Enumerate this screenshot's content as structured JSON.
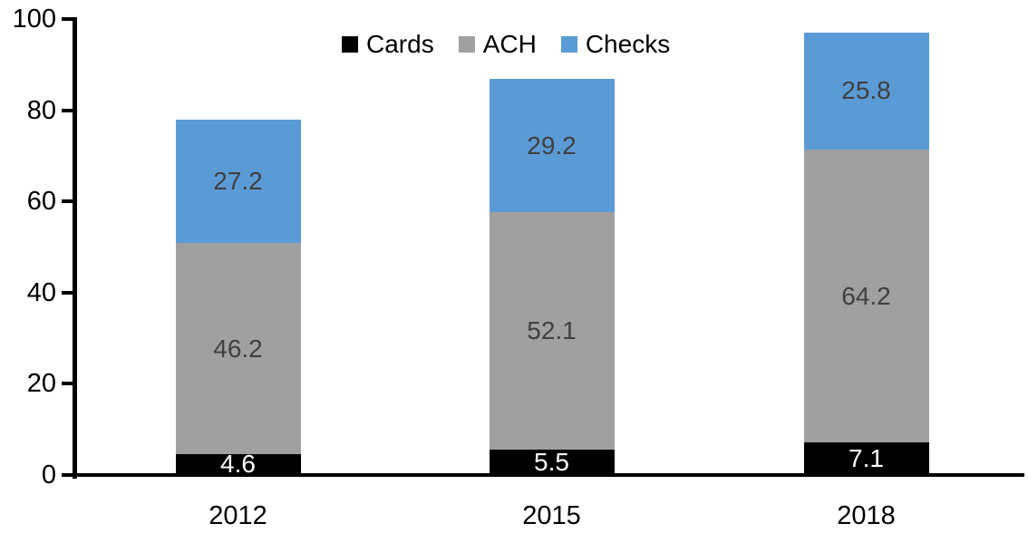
{
  "chart_data": {
    "type": "bar",
    "stacked": true,
    "title": "",
    "xlabel": "",
    "ylabel": "",
    "categories": [
      "2012",
      "2015",
      "2018"
    ],
    "series": [
      {
        "name": "Cards",
        "color": "#000000",
        "label_color": "#FFFFFF",
        "values": [
          4.6,
          5.5,
          7.1
        ]
      },
      {
        "name": "ACH",
        "color": "#A0A0A0",
        "label_color": "#404040",
        "values": [
          46.2,
          52.1,
          64.2
        ]
      },
      {
        "name": "Checks",
        "color": "#5B9BD5",
        "label_color": "#404040",
        "values": [
          27.2,
          29.2,
          25.8
        ]
      }
    ],
    "ylim": [
      0,
      100
    ],
    "yticks": [
      "0",
      "20",
      "40",
      "60",
      "80",
      "100"
    ],
    "grid": false,
    "legend_position": "top-center",
    "axis_color": "#000000",
    "background_color": "#FFFFFF",
    "data_labels_shown": true
  }
}
